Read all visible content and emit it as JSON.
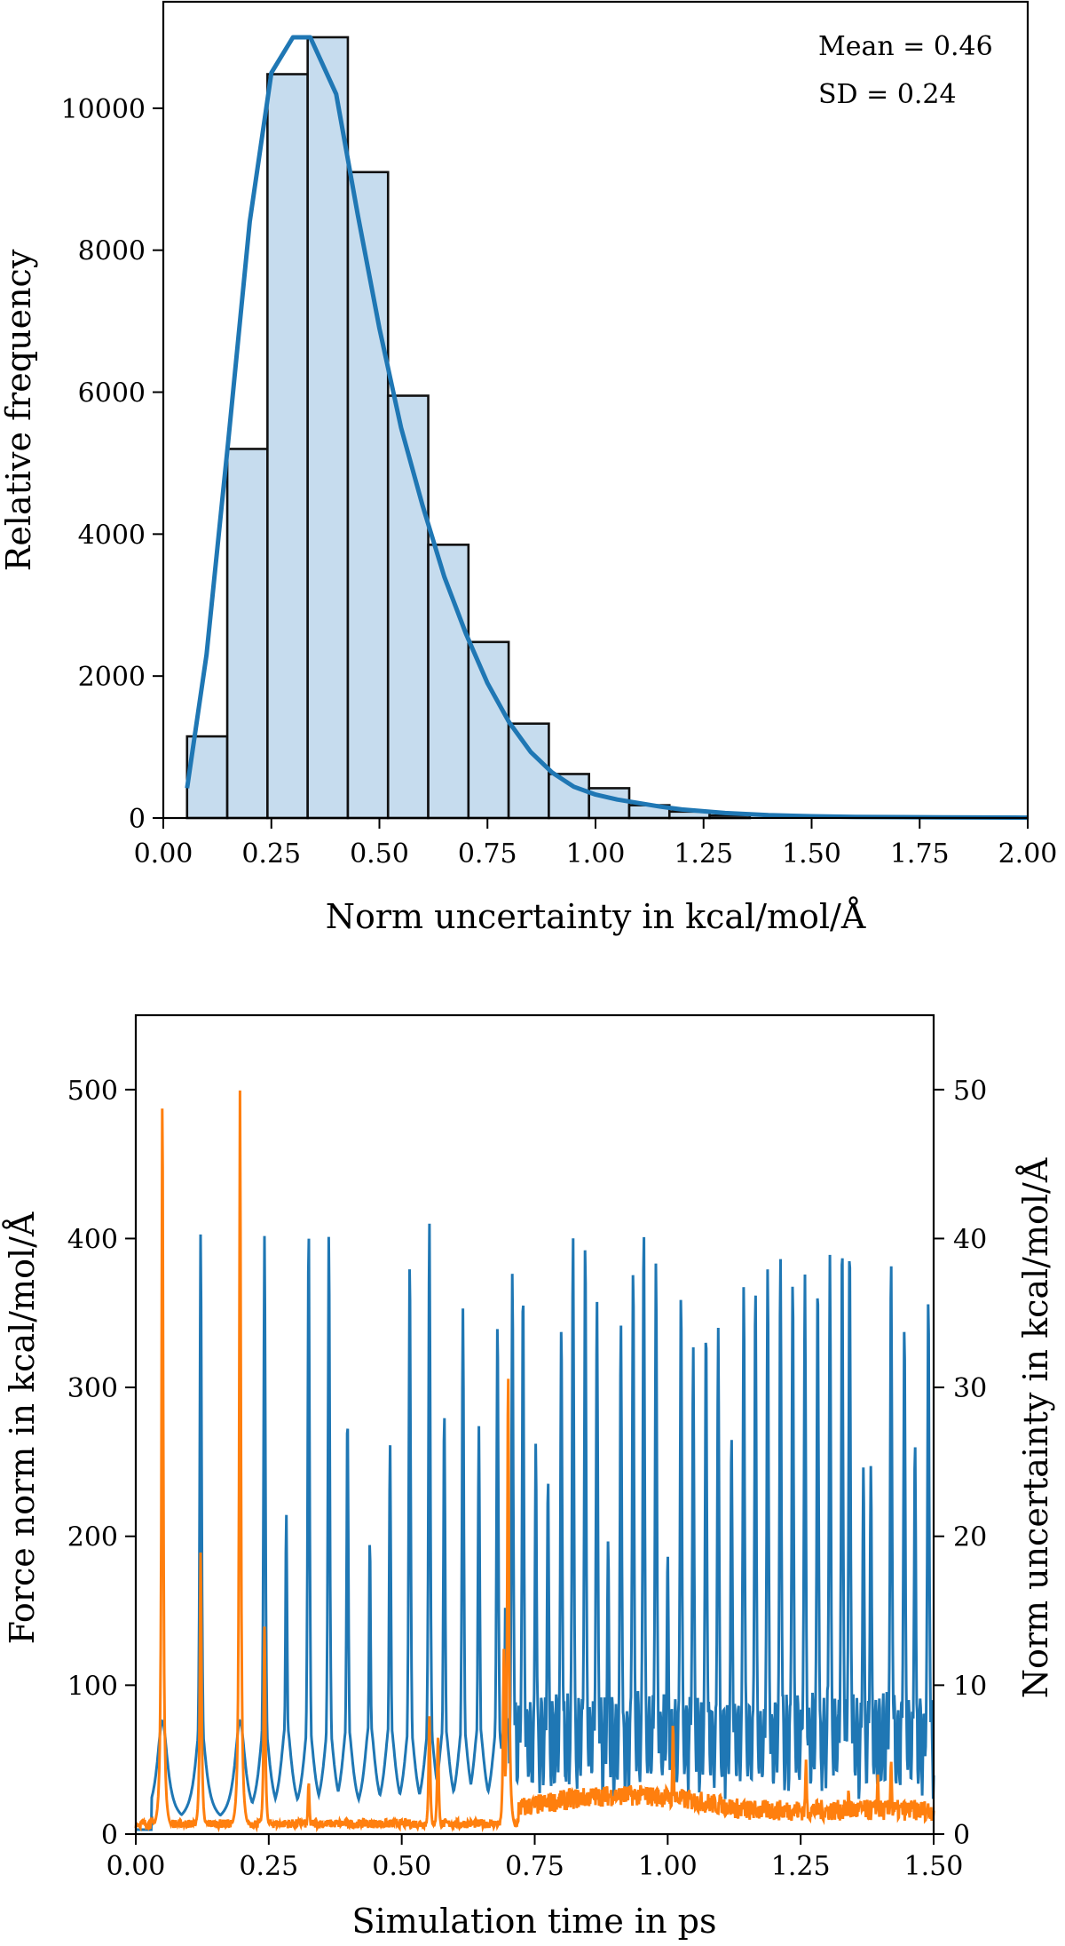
{
  "chart_data": [
    {
      "type": "bar",
      "subtype": "histogram-with-density",
      "xlabel": "Norm uncertainty in kcal/mol/Å",
      "ylabel": "Relative frequency",
      "xlim": [
        0,
        2.0
      ],
      "ylim": [
        0,
        11500
      ],
      "xticks": [
        "0.00",
        "0.25",
        "0.50",
        "0.75",
        "1.00",
        "1.25",
        "1.50",
        "1.75",
        "2.00"
      ],
      "yticks": [
        "0",
        "2000",
        "4000",
        "6000",
        "8000",
        "10000"
      ],
      "bin_width": 0.093,
      "bins": [
        {
          "start": 0.055,
          "value": 1150
        },
        {
          "start": 0.148,
          "value": 5200
        },
        {
          "start": 0.241,
          "value": 10480
        },
        {
          "start": 0.334,
          "value": 11000
        },
        {
          "start": 0.427,
          "value": 9100
        },
        {
          "start": 0.52,
          "value": 5950
        },
        {
          "start": 0.613,
          "value": 3850
        },
        {
          "start": 0.706,
          "value": 2480
        },
        {
          "start": 0.799,
          "value": 1330
        },
        {
          "start": 0.892,
          "value": 620
        },
        {
          "start": 0.985,
          "value": 420
        },
        {
          "start": 1.078,
          "value": 180
        },
        {
          "start": 1.171,
          "value": 90
        },
        {
          "start": 1.264,
          "value": 35
        }
      ],
      "density_curve": {
        "x": [
          0.055,
          0.1,
          0.15,
          0.2,
          0.25,
          0.3,
          0.34,
          0.4,
          0.45,
          0.5,
          0.55,
          0.6,
          0.65,
          0.7,
          0.75,
          0.8,
          0.85,
          0.9,
          0.95,
          1.0,
          1.05,
          1.1,
          1.15,
          1.2,
          1.3,
          1.4,
          1.5,
          1.6,
          1.8,
          2.0
        ],
        "y": [
          420,
          2300,
          5300,
          8400,
          10500,
          11000,
          11000,
          10200,
          8500,
          6900,
          5500,
          4400,
          3400,
          2600,
          1900,
          1350,
          930,
          640,
          440,
          330,
          260,
          210,
          160,
          120,
          70,
          40,
          25,
          15,
          10,
          5
        ]
      },
      "annotations": [
        "Mean = 0.46",
        "SD = 0.24"
      ],
      "colors": {
        "bar_fill": "#c6dcee",
        "line": "#1f77b4"
      }
    },
    {
      "type": "line",
      "xlabel": "Simulation time in ps",
      "ylabel_left": "Force norm in kcal/mol/Å",
      "ylabel_right": "Norm uncertainty in kcal/mol/Å",
      "xlim": [
        0,
        1.5
      ],
      "ylim_left": [
        0,
        550
      ],
      "ylim_right": [
        0,
        55
      ],
      "xticks": [
        "0.00",
        "0.25",
        "0.50",
        "0.75",
        "1.00",
        "1.25",
        "1.50"
      ],
      "yticks_left": [
        "0",
        "100",
        "200",
        "300",
        "400",
        "500"
      ],
      "yticks_right": [
        "0",
        "10",
        "20",
        "30",
        "40",
        "50"
      ],
      "series": [
        {
          "axis": "left",
          "color": "#1f77b4",
          "spikes": [
            {
              "t": 0.05,
              "v": 73
            },
            {
              "t": 0.122,
              "v": 404
            },
            {
              "t": 0.196,
              "v": 70
            },
            {
              "t": 0.242,
              "v": 403
            },
            {
              "t": 0.283,
              "v": 215
            },
            {
              "t": 0.325,
              "v": 408
            },
            {
              "t": 0.363,
              "v": 404
            },
            {
              "t": 0.398,
              "v": 283
            },
            {
              "t": 0.44,
              "v": 198
            },
            {
              "t": 0.478,
              "v": 262
            },
            {
              "t": 0.515,
              "v": 387
            },
            {
              "t": 0.552,
              "v": 413
            },
            {
              "t": 0.58,
              "v": 285
            },
            {
              "t": 0.615,
              "v": 353
            },
            {
              "t": 0.645,
              "v": 274
            },
            {
              "t": 0.68,
              "v": 346
            },
            {
              "t": 0.695,
              "v": 155
            },
            {
              "t": 0.708,
              "v": 379
            },
            {
              "t": 0.728,
              "v": 369
            },
            {
              "t": 0.752,
              "v": 263
            },
            {
              "t": 0.775,
              "v": 240
            },
            {
              "t": 0.8,
              "v": 344
            },
            {
              "t": 0.822,
              "v": 403
            },
            {
              "t": 0.845,
              "v": 400
            },
            {
              "t": 0.867,
              "v": 360
            },
            {
              "t": 0.888,
              "v": 198
            },
            {
              "t": 0.912,
              "v": 344
            },
            {
              "t": 0.935,
              "v": 383
            },
            {
              "t": 0.955,
              "v": 409
            },
            {
              "t": 0.978,
              "v": 386
            },
            {
              "t": 1.0,
              "v": 190
            },
            {
              "t": 1.025,
              "v": 366
            },
            {
              "t": 1.048,
              "v": 328
            },
            {
              "t": 1.072,
              "v": 343
            },
            {
              "t": 1.095,
              "v": 340
            },
            {
              "t": 1.12,
              "v": 270
            },
            {
              "t": 1.143,
              "v": 370
            },
            {
              "t": 1.165,
              "v": 369
            },
            {
              "t": 1.188,
              "v": 382
            },
            {
              "t": 1.212,
              "v": 389
            },
            {
              "t": 1.235,
              "v": 375
            },
            {
              "t": 1.258,
              "v": 377
            },
            {
              "t": 1.282,
              "v": 374
            },
            {
              "t": 1.305,
              "v": 389
            },
            {
              "t": 1.328,
              "v": 402
            },
            {
              "t": 1.342,
              "v": 400
            },
            {
              "t": 1.368,
              "v": 248
            },
            {
              "t": 1.382,
              "v": 248
            },
            {
              "t": 1.42,
              "v": 389
            },
            {
              "t": 1.445,
              "v": 344
            },
            {
              "t": 1.465,
              "v": 265
            },
            {
              "t": 1.49,
              "v": 363
            }
          ]
        },
        {
          "axis": "right",
          "color": "#ff7f0e",
          "spikes": [
            {
              "t": 0.05,
              "v": 50.2
            },
            {
              "t": 0.122,
              "v": 19.0
            },
            {
              "t": 0.196,
              "v": 50.0
            },
            {
              "t": 0.242,
              "v": 14.0
            },
            {
              "t": 0.325,
              "v": 3.5
            },
            {
              "t": 0.552,
              "v": 8.0
            },
            {
              "t": 0.568,
              "v": 6.5
            },
            {
              "t": 0.692,
              "v": 12.5
            },
            {
              "t": 0.7,
              "v": 31.5
            },
            {
              "t": 0.82,
              "v": 3.0
            },
            {
              "t": 0.955,
              "v": 3.0
            },
            {
              "t": 1.01,
              "v": 7.5
            },
            {
              "t": 1.1,
              "v": 2.5
            },
            {
              "t": 1.26,
              "v": 5.0
            },
            {
              "t": 1.34,
              "v": 3.0
            },
            {
              "t": 1.395,
              "v": 4.0
            },
            {
              "t": 1.42,
              "v": 5.0
            }
          ]
        }
      ]
    }
  ]
}
